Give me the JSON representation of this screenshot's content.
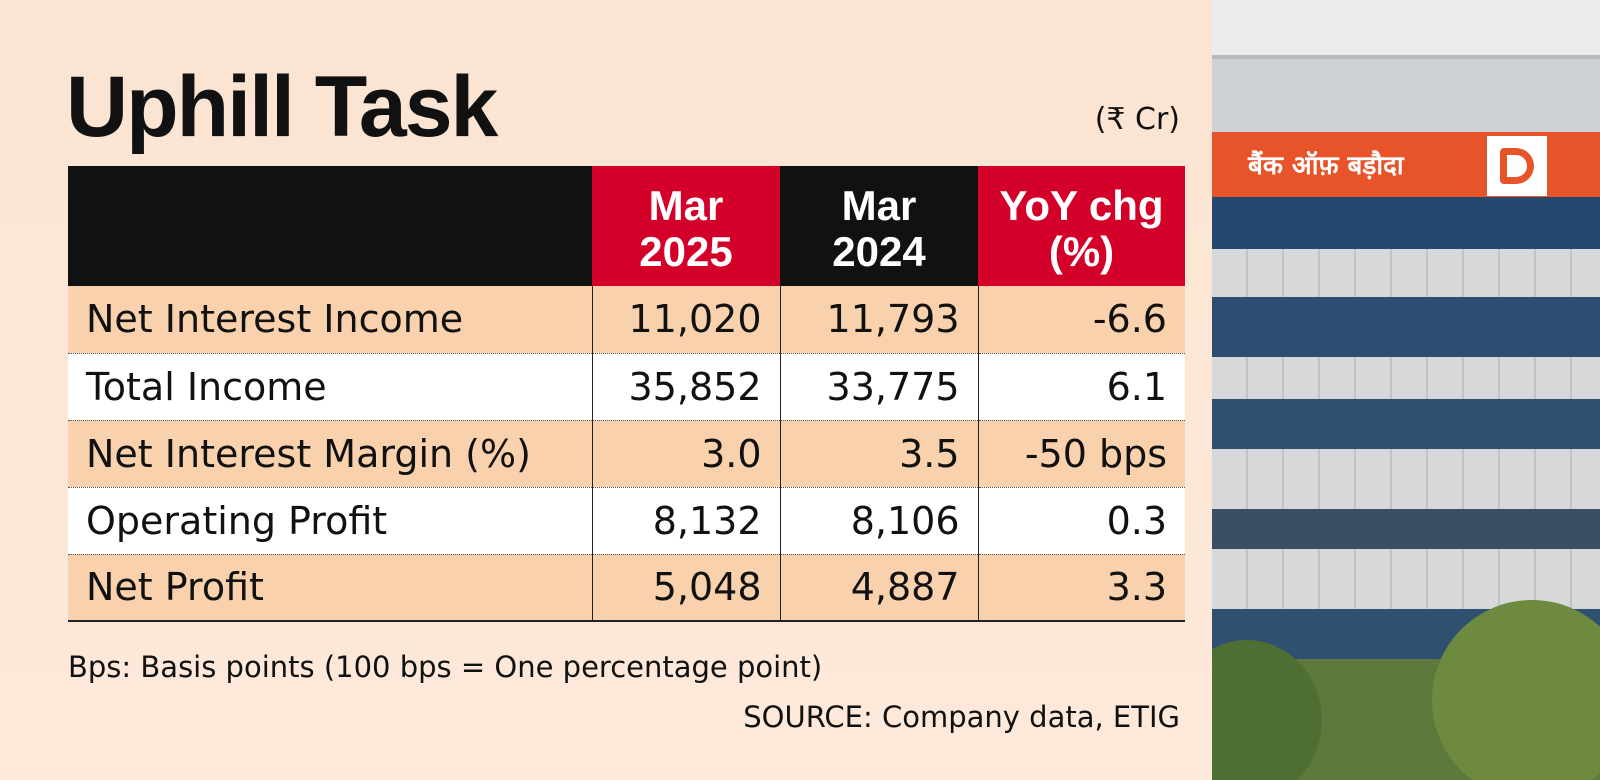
{
  "title": "Uphill Task",
  "unit": "(₹ Cr)",
  "colors": {
    "header_red": "#d3002a",
    "header_black": "#111111",
    "row_peach": "#f9d2ad",
    "row_white": "#ffffff",
    "sign_orange": "#e8542a"
  },
  "chart_data": {
    "type": "table",
    "columns": [
      "",
      "Mar 2025",
      "Mar 2024",
      "YoY chg (%)"
    ],
    "header_lines": [
      [
        "",
        ""
      ],
      [
        "Mar",
        "2025"
      ],
      [
        "Mar",
        "2024"
      ],
      [
        "YoY chg",
        "(%)"
      ]
    ],
    "rows": [
      [
        "Net Interest Income",
        "11,020",
        "11,793",
        "-6.6"
      ],
      [
        "Total Income",
        "35,852",
        "33,775",
        "6.1"
      ],
      [
        "Net Interest Margin (%)",
        "3.0",
        "3.5",
        "-50 bps"
      ],
      [
        "Operating Profit",
        "8,132",
        "8,106",
        "0.3"
      ],
      [
        "Net Profit",
        "5,048",
        "4,887",
        "3.3"
      ]
    ]
  },
  "footnote": "Bps: Basis points (100 bps = One percentage point)",
  "source": "SOURCE: Company data, ETIG",
  "photo": {
    "sign_text": "बैंक ऑफ़ बड़ौदा",
    "logo": "bank-of-baroda-logo"
  }
}
